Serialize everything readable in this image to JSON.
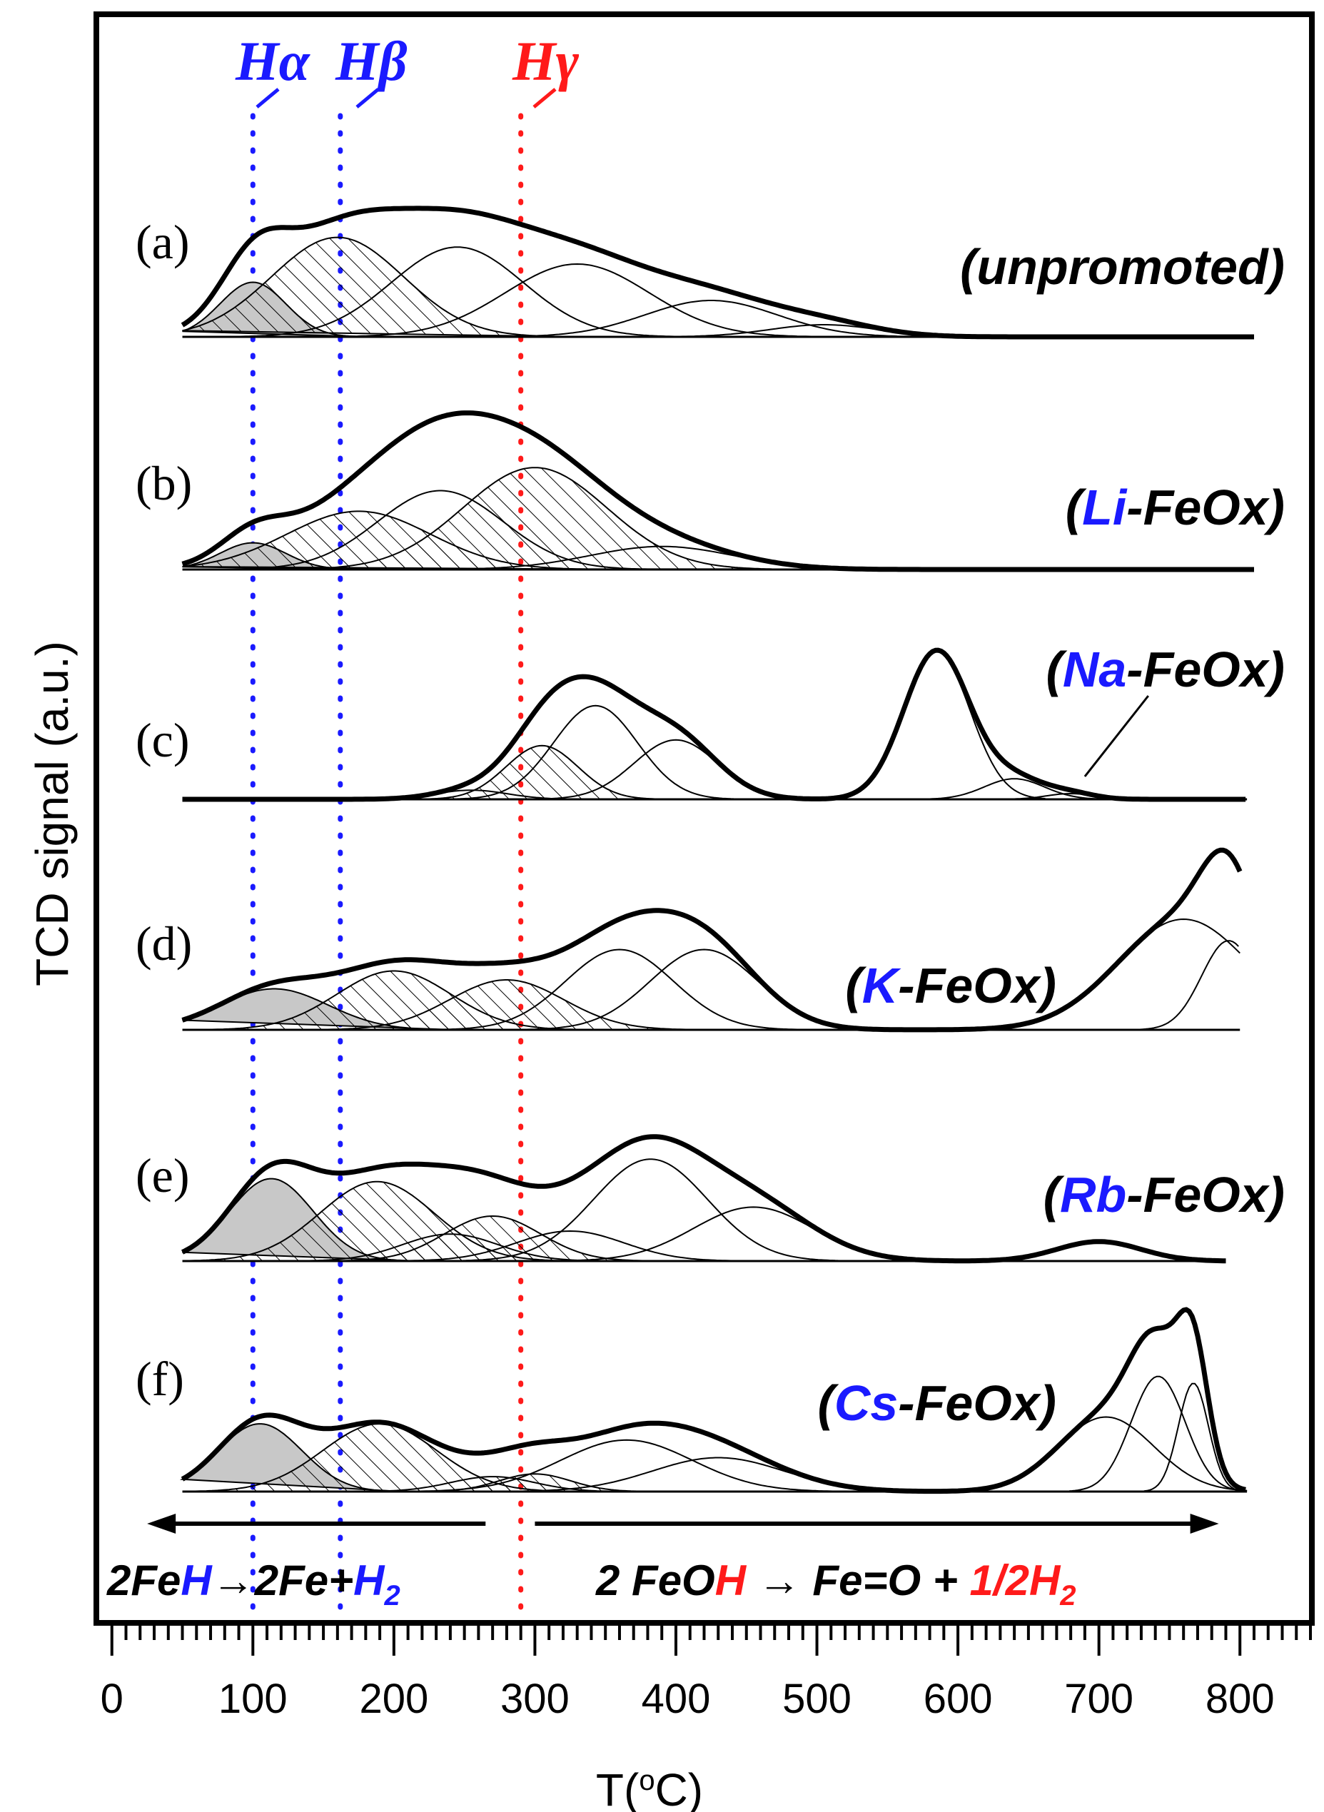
{
  "chart_data": {
    "type": "line",
    "xlabel": "T(°C)",
    "xlabel_parts": [
      "T(",
      "o",
      "C)"
    ],
    "ylabel": "TCD signal (a.u.)",
    "xlim": [
      -10,
      850
    ],
    "xticks": [
      0,
      100,
      200,
      300,
      400,
      500,
      600,
      700,
      800
    ],
    "xtick_labels": [
      "0",
      "100",
      "200",
      "300",
      "400",
      "500",
      "600",
      "700",
      "800"
    ],
    "y_ticks_shown": false,
    "colors": {
      "blue": "#1a1aff",
      "red": "#ff1a1a",
      "black": "#000000",
      "fill_gray": "#c8c8c8"
    },
    "reference_lines": [
      {
        "name": "Hα",
        "base": "H",
        "greek": "α",
        "x": 100,
        "color": "#1a1aff",
        "style": "dotted"
      },
      {
        "name": "Hβ",
        "base": "H",
        "greek": "β",
        "x": 162,
        "color": "#1a1aff",
        "style": "dotted"
      },
      {
        "name": "Hγ",
        "base": "H",
        "greek": "γ",
        "x": 290,
        "color": "#ff1a1a",
        "style": "dotted"
      }
    ],
    "series": [
      {
        "id": "a",
        "panel": "(a)",
        "sample": "(unpromoted)",
        "sample_parts": [
          {
            "t": "(unpromoted)",
            "c": "black"
          }
        ],
        "x_range": [
          50,
          810
        ],
        "peaks": [
          {
            "center": 100,
            "height": 0.45,
            "fwhm": 55,
            "fill": "gray"
          },
          {
            "center": 160,
            "height": 0.82,
            "fwhm": 110,
            "fill": "hatch"
          },
          {
            "center": 245,
            "height": 0.74,
            "fwhm": 110,
            "fill": "none"
          },
          {
            "center": 330,
            "height": 0.6,
            "fwhm": 120,
            "fill": "none"
          },
          {
            "center": 425,
            "height": 0.3,
            "fwhm": 110,
            "fill": "none"
          },
          {
            "center": 505,
            "height": 0.1,
            "fwhm": 90,
            "fill": "none"
          }
        ]
      },
      {
        "id": "b",
        "panel": "(b)",
        "sample": "(Li-FeOx)",
        "sample_parts": [
          {
            "t": "(",
            "c": "black"
          },
          {
            "t": "Li",
            "c": "blue"
          },
          {
            "t": "-FeOx)",
            "c": "black"
          }
        ],
        "x_range": [
          50,
          810
        ],
        "peaks": [
          {
            "center": 100,
            "height": 0.22,
            "fwhm": 55,
            "fill": "gray"
          },
          {
            "center": 175,
            "height": 0.48,
            "fwhm": 120,
            "fill": "hatch"
          },
          {
            "center": 233,
            "height": 0.65,
            "fwhm": 105,
            "fill": "none"
          },
          {
            "center": 300,
            "height": 0.84,
            "fwhm": 120,
            "fill": "hatch"
          },
          {
            "center": 390,
            "height": 0.19,
            "fwhm": 120,
            "fill": "none"
          }
        ]
      },
      {
        "id": "c",
        "panel": "(c)",
        "sample": "(Na-FeOx)",
        "sample_parts": [
          {
            "t": "(",
            "c": "black"
          },
          {
            "t": "Na",
            "c": "blue"
          },
          {
            "t": "-FeOx)",
            "c": "black"
          }
        ],
        "x_range": [
          50,
          805
        ],
        "peaks": [
          {
            "center": 305,
            "height": 0.47,
            "fwhm": 60,
            "fill": "hatch"
          },
          {
            "center": 343,
            "height": 0.82,
            "fwhm": 70,
            "fill": "none"
          },
          {
            "center": 400,
            "height": 0.52,
            "fwhm": 70,
            "fill": "none"
          },
          {
            "center": 585,
            "height": 1.3,
            "fwhm": 55,
            "fill": "none"
          },
          {
            "center": 640,
            "height": 0.18,
            "fwhm": 50,
            "fill": "none"
          },
          {
            "center": 680,
            "height": 0.05,
            "fwhm": 40,
            "fill": "none"
          },
          {
            "center": 255,
            "height": 0.08,
            "fwhm": 60,
            "fill": "none"
          }
        ]
      },
      {
        "id": "d",
        "panel": "(d)",
        "sample": "(K-FeOx)",
        "sample_parts": [
          {
            "t": "(",
            "c": "black"
          },
          {
            "t": "K",
            "c": "blue"
          },
          {
            "t": "-FeOx)",
            "c": "black"
          }
        ],
        "x_range": [
          50,
          800
        ],
        "peaks": [
          {
            "center": 115,
            "height": 0.23,
            "fwhm": 90,
            "fill": "gray"
          },
          {
            "center": 200,
            "height": 0.33,
            "fwhm": 95,
            "fill": "hatch"
          },
          {
            "center": 280,
            "height": 0.28,
            "fwhm": 95,
            "fill": "hatch"
          },
          {
            "center": 360,
            "height": 0.45,
            "fwhm": 90,
            "fill": "none"
          },
          {
            "center": 420,
            "height": 0.45,
            "fwhm": 90,
            "fill": "none"
          },
          {
            "center": 760,
            "height": 0.62,
            "fwhm": 110,
            "fill": "none"
          },
          {
            "center": 792,
            "height": 0.5,
            "fwhm": 45,
            "fill": "none"
          }
        ]
      },
      {
        "id": "e",
        "panel": "(e)",
        "sample": "(Rb-FeOx)",
        "sample_parts": [
          {
            "t": "(",
            "c": "black"
          },
          {
            "t": "Rb",
            "c": "blue"
          },
          {
            "t": "-FeOx)",
            "c": "black"
          }
        ],
        "x_range": [
          50,
          790
        ],
        "peaks": [
          {
            "center": 113,
            "height": 0.55,
            "fwhm": 70,
            "fill": "gray"
          },
          {
            "center": 188,
            "height": 0.53,
            "fwhm": 95,
            "fill": "hatch"
          },
          {
            "center": 240,
            "height": 0.18,
            "fwhm": 80,
            "fill": "hatch"
          },
          {
            "center": 270,
            "height": 0.3,
            "fwhm": 80,
            "fill": "hatch"
          },
          {
            "center": 325,
            "height": 0.2,
            "fwhm": 90,
            "fill": "none"
          },
          {
            "center": 382,
            "height": 0.68,
            "fwhm": 95,
            "fill": "none"
          },
          {
            "center": 455,
            "height": 0.36,
            "fwhm": 100,
            "fill": "none"
          },
          {
            "center": 700,
            "height": 0.13,
            "fwhm": 70,
            "fill": "none"
          }
        ]
      },
      {
        "id": "f",
        "panel": "(f)",
        "sample": "(Cs-FeOx)",
        "sample_parts": [
          {
            "t": "(",
            "c": "black"
          },
          {
            "t": "Cs",
            "c": "blue"
          },
          {
            "t": "-FeOx)",
            "c": "black"
          }
        ],
        "x_range": [
          50,
          805
        ],
        "peaks": [
          {
            "center": 105,
            "height": 0.5,
            "fwhm": 70,
            "fill": "gray"
          },
          {
            "center": 190,
            "height": 0.5,
            "fwhm": 95,
            "fill": "hatch"
          },
          {
            "center": 270,
            "height": 0.11,
            "fwhm": 70,
            "fill": "hatch"
          },
          {
            "center": 300,
            "height": 0.13,
            "fwhm": 60,
            "fill": "hatch"
          },
          {
            "center": 365,
            "height": 0.38,
            "fwhm": 110,
            "fill": "none"
          },
          {
            "center": 430,
            "height": 0.25,
            "fwhm": 110,
            "fill": "none"
          },
          {
            "center": 705,
            "height": 0.55,
            "fwhm": 80,
            "fill": "none"
          },
          {
            "center": 742,
            "height": 0.85,
            "fwhm": 45,
            "fill": "none"
          },
          {
            "center": 767,
            "height": 0.8,
            "fwhm": 25,
            "fill": "none"
          }
        ]
      }
    ],
    "annotations": {
      "left_arrow_range": [
        25,
        265
      ],
      "right_arrow_range": [
        300,
        785
      ],
      "left_reaction": "2FeH→2Fe+H2",
      "left_reaction_parts": [
        {
          "t": "2Fe",
          "c": "black"
        },
        {
          "t": "H",
          "c": "blue"
        },
        {
          "t": "→",
          "c": "black"
        },
        {
          "t": "2Fe+",
          "c": "black"
        },
        {
          "t": "H",
          "c": "blue"
        },
        {
          "t": "2",
          "c": "blue",
          "sub": true
        }
      ],
      "right_reaction": "2 FeOH → Fe=O + 1/2H2",
      "right_reaction_parts": [
        {
          "t": "2 FeO",
          "c": "black"
        },
        {
          "t": "H",
          "c": "red"
        },
        {
          "t": " → ",
          "c": "black"
        },
        {
          "t": "Fe=O + ",
          "c": "black"
        },
        {
          "t": "1/2H",
          "c": "red"
        },
        {
          "t": "2",
          "c": "red",
          "sub": true
        }
      ]
    }
  }
}
